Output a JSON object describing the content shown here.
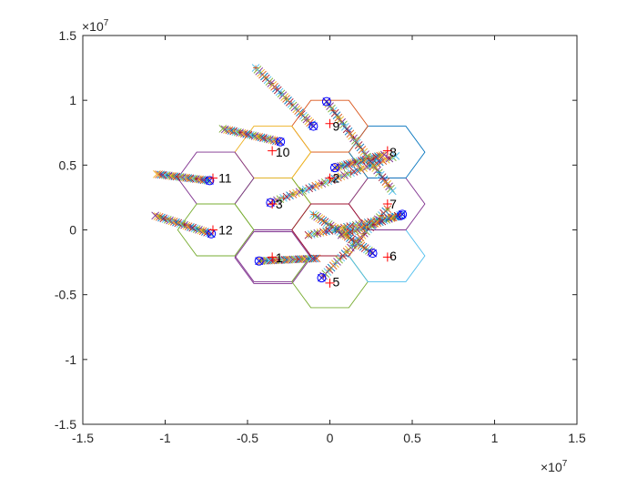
{
  "chart_data": {
    "type": "scatter",
    "title": "",
    "xlabel": "",
    "ylabel": "",
    "xlim": [
      -15000000,
      15000000
    ],
    "ylim": [
      -15000000,
      15000000
    ],
    "x_ticks": [
      -15000000,
      -10000000,
      -5000000,
      0,
      5000000,
      10000000,
      15000000
    ],
    "y_ticks": [
      -15000000,
      -10000000,
      -5000000,
      0,
      5000000,
      10000000,
      15000000
    ],
    "x_tick_labels": [
      "-1.5",
      "-1",
      "-0.5",
      "0",
      "0.5",
      "1",
      "1.5"
    ],
    "y_tick_labels": [
      "-1.5",
      "-1",
      "-0.5",
      "0",
      "0.5",
      "1",
      "1.5"
    ],
    "x_multiplier": {
      "base": "×10",
      "exponent": "7"
    },
    "y_multiplier": {
      "base": "×10",
      "exponent": "7"
    },
    "grid": false,
    "hex_radius": 2309401,
    "cells": [
      {
        "id": "1",
        "label": "1",
        "center": [
          -3460000,
          -2140000
        ],
        "edge_color": "#7e2f8e"
      },
      {
        "id": "2",
        "label": "2",
        "center": [
          0,
          4000000
        ],
        "edge_color": "#edb120"
      },
      {
        "id": "3",
        "label": "3",
        "center": [
          -3460000,
          2000000
        ],
        "edge_color": "#77ac30"
      },
      {
        "id": "4",
        "label": "",
        "center": [
          -3460000,
          -2000000
        ],
        "edge_color": "#7e2f8e"
      },
      {
        "id": "5",
        "label": "5",
        "center": [
          0,
          -4000000
        ],
        "edge_color": "#77ac30"
      },
      {
        "id": "6",
        "label": "6",
        "center": [
          3460000,
          -2000000
        ],
        "edge_color": "#4dbeee"
      },
      {
        "id": "7",
        "label": "7",
        "center": [
          3460000,
          2000000
        ],
        "edge_color": "#7e2f8e"
      },
      {
        "id": "8",
        "label": "8",
        "center": [
          3460000,
          6000000
        ],
        "edge_color": "#0072bd"
      },
      {
        "id": "9",
        "label": "9",
        "center": [
          0,
          8000000
        ],
        "edge_color": "#d95319"
      },
      {
        "id": "10",
        "label": "10",
        "center": [
          -3460000,
          6000000
        ],
        "edge_color": "#edb120"
      },
      {
        "id": "11",
        "label": "11",
        "center": [
          -6930000,
          4000000
        ],
        "edge_color": "#7e2f8e"
      },
      {
        "id": "12",
        "label": "12",
        "center": [
          -6930000,
          0
        ],
        "edge_color": "#77ac30"
      },
      {
        "id": "c0",
        "label": "",
        "center": [
          0,
          0
        ],
        "edge_color": "#a2142f"
      }
    ],
    "label_markers": [
      [
        -3500000,
        -2100000
      ],
      [
        0,
        4000000
      ],
      [
        -3500000,
        2000000
      ],
      [
        0,
        -4100000
      ],
      [
        3500000,
        -2100000
      ],
      [
        3500000,
        2000000
      ],
      [
        3500000,
        6100000
      ],
      [
        0,
        8200000
      ],
      [
        -3500000,
        6100000
      ],
      [
        -7100000,
        4000000
      ],
      [
        -7100000,
        0
      ]
    ],
    "tracks": [
      {
        "start": [
          -4300000,
          -2400000
        ],
        "end": [
          -800000,
          -2200000
        ],
        "n": 30
      },
      {
        "start": [
          -3600000,
          2100000
        ],
        "end": [
          4000000,
          5700000
        ],
        "n": 40
      },
      {
        "start": [
          -500000,
          -3700000
        ],
        "end": [
          3500000,
          1600000
        ],
        "n": 35
      },
      {
        "start": [
          -7300000,
          3800000
        ],
        "end": [
          -10500000,
          4300000
        ],
        "n": 28
      },
      {
        "start": [
          -7200000,
          -300000
        ],
        "end": [
          -10600000,
          1100000
        ],
        "n": 28
      },
      {
        "start": [
          -3000000,
          6800000
        ],
        "end": [
          -6500000,
          7800000
        ],
        "n": 28
      },
      {
        "start": [
          -1000000,
          8000000
        ],
        "end": [
          -4500000,
          12500000
        ],
        "n": 35
      },
      {
        "start": [
          300000,
          4800000
        ],
        "end": [
          3300000,
          5800000
        ],
        "n": 25
      },
      {
        "start": [
          -200000,
          9900000
        ],
        "end": [
          3800000,
          3000000
        ],
        "n": 40
      },
      {
        "start": [
          2600000,
          -1800000
        ],
        "end": [
          -1000000,
          1200000
        ],
        "n": 32
      },
      {
        "start": [
          4300000,
          1100000
        ],
        "end": [
          -1300000,
          -400000
        ],
        "n": 32
      },
      {
        "start": [
          4400000,
          1200000
        ],
        "end": [
          700000,
          -400000
        ],
        "n": 28
      }
    ],
    "track_colors": [
      "#0072bd",
      "#d95319",
      "#edb120",
      "#7e2f8e",
      "#77ac30",
      "#4dbeee",
      "#a2142f"
    ],
    "endpoint_color": "#0000ff",
    "label_marker_color": "#ff0000"
  }
}
